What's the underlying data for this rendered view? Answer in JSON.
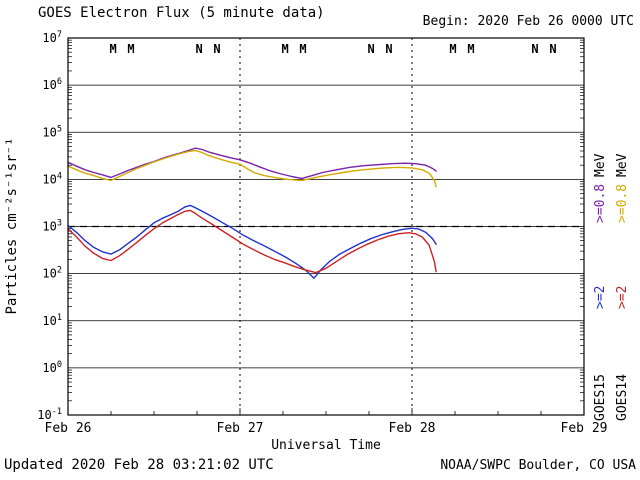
{
  "header": {
    "title": "GOES Electron Flux (5 minute data)",
    "begin_label": "Begin: 2020 Feb 26 0000 UTC"
  },
  "footer": {
    "updated": "Updated 2020 Feb 28 03:21:02 UTC",
    "credit": "NOAA/SWPC Boulder, CO USA"
  },
  "chart_data": {
    "type": "line",
    "title": "GOES Electron Flux (5 minute data)",
    "xlabel": "Universal Time",
    "ylabel": "Particles cm⁻²s⁻¹sr⁻¹",
    "x_ticks": [
      "Feb 26",
      "Feb 27",
      "Feb 28",
      "Feb 29"
    ],
    "x_range_days": [
      0,
      3
    ],
    "y_scale": "log10",
    "y_tick_exponents": [
      7,
      6,
      5,
      4,
      3,
      2,
      1,
      0,
      -1
    ],
    "grid": true,
    "threshold_line": 1000,
    "vertical_day_lines_days": [
      1,
      2
    ],
    "series": [
      {
        "name": "GOES15 >=0.8 MeV",
        "color": "#7b22a8",
        "points": [
          [
            0.0,
            23000
          ],
          [
            0.05,
            19000
          ],
          [
            0.1,
            16000
          ],
          [
            0.15,
            14000
          ],
          [
            0.2,
            12500
          ],
          [
            0.25,
            11000
          ],
          [
            0.3,
            13000
          ],
          [
            0.35,
            15500
          ],
          [
            0.4,
            18000
          ],
          [
            0.45,
            21000
          ],
          [
            0.5,
            24000
          ],
          [
            0.55,
            28000
          ],
          [
            0.6,
            32000
          ],
          [
            0.65,
            36000
          ],
          [
            0.7,
            41000
          ],
          [
            0.74,
            46000
          ],
          [
            0.78,
            43000
          ],
          [
            0.82,
            38000
          ],
          [
            0.88,
            33000
          ],
          [
            0.94,
            29000
          ],
          [
            1.0,
            26000
          ],
          [
            1.06,
            22000
          ],
          [
            1.12,
            18000
          ],
          [
            1.18,
            15000
          ],
          [
            1.24,
            13000
          ],
          [
            1.3,
            11500
          ],
          [
            1.36,
            10500
          ],
          [
            1.42,
            12000
          ],
          [
            1.48,
            14000
          ],
          [
            1.56,
            16000
          ],
          [
            1.64,
            18000
          ],
          [
            1.72,
            19500
          ],
          [
            1.8,
            20500
          ],
          [
            1.88,
            21500
          ],
          [
            1.96,
            22000
          ],
          [
            2.02,
            21500
          ],
          [
            2.08,
            20000
          ],
          [
            2.12,
            17000
          ],
          [
            2.14,
            15000
          ]
        ]
      },
      {
        "name": "GOES14 >=0.8 MeV",
        "color": "#d4aa00",
        "points": [
          [
            0.0,
            19000
          ],
          [
            0.05,
            16000
          ],
          [
            0.1,
            13500
          ],
          [
            0.15,
            12000
          ],
          [
            0.2,
            10500
          ],
          [
            0.25,
            9500
          ],
          [
            0.3,
            11500
          ],
          [
            0.35,
            14000
          ],
          [
            0.4,
            17000
          ],
          [
            0.45,
            20000
          ],
          [
            0.5,
            23500
          ],
          [
            0.55,
            27000
          ],
          [
            0.6,
            31000
          ],
          [
            0.65,
            35000
          ],
          [
            0.7,
            39000
          ],
          [
            0.74,
            41000
          ],
          [
            0.78,
            37000
          ],
          [
            0.82,
            32000
          ],
          [
            0.88,
            27000
          ],
          [
            0.94,
            23500
          ],
          [
            1.0,
            21000
          ],
          [
            1.04,
            17000
          ],
          [
            1.08,
            14000
          ],
          [
            1.14,
            12000
          ],
          [
            1.2,
            11000
          ],
          [
            1.28,
            10000
          ],
          [
            1.36,
            9500
          ],
          [
            1.44,
            11000
          ],
          [
            1.52,
            12500
          ],
          [
            1.6,
            14000
          ],
          [
            1.68,
            15500
          ],
          [
            1.76,
            16500
          ],
          [
            1.84,
            17500
          ],
          [
            1.92,
            18000
          ],
          [
            2.0,
            17500
          ],
          [
            2.06,
            16000
          ],
          [
            2.1,
            13500
          ],
          [
            2.13,
            9500
          ],
          [
            2.14,
            7000
          ]
        ]
      },
      {
        "name": "GOES15 >=2 MeV",
        "color": "#2233cc",
        "points": [
          [
            0.0,
            1050
          ],
          [
            0.05,
            750
          ],
          [
            0.1,
            500
          ],
          [
            0.15,
            360
          ],
          [
            0.2,
            290
          ],
          [
            0.25,
            260
          ],
          [
            0.3,
            320
          ],
          [
            0.35,
            440
          ],
          [
            0.4,
            600
          ],
          [
            0.45,
            850
          ],
          [
            0.5,
            1200
          ],
          [
            0.55,
            1500
          ],
          [
            0.6,
            1800
          ],
          [
            0.64,
            2100
          ],
          [
            0.68,
            2600
          ],
          [
            0.71,
            2800
          ],
          [
            0.74,
            2500
          ],
          [
            0.78,
            2100
          ],
          [
            0.84,
            1600
          ],
          [
            0.9,
            1200
          ],
          [
            0.96,
            900
          ],
          [
            1.02,
            650
          ],
          [
            1.08,
            500
          ],
          [
            1.14,
            390
          ],
          [
            1.2,
            300
          ],
          [
            1.26,
            230
          ],
          [
            1.32,
            170
          ],
          [
            1.38,
            120
          ],
          [
            1.43,
            80
          ],
          [
            1.47,
            120
          ],
          [
            1.52,
            180
          ],
          [
            1.58,
            260
          ],
          [
            1.64,
            340
          ],
          [
            1.7,
            440
          ],
          [
            1.76,
            550
          ],
          [
            1.82,
            660
          ],
          [
            1.88,
            760
          ],
          [
            1.94,
            860
          ],
          [
            2.0,
            920
          ],
          [
            2.04,
            880
          ],
          [
            2.08,
            750
          ],
          [
            2.12,
            550
          ],
          [
            2.14,
            420
          ]
        ]
      },
      {
        "name": "GOES14 >=2 MeV",
        "color": "#cc2222",
        "points": [
          [
            0.0,
            900
          ],
          [
            0.05,
            600
          ],
          [
            0.1,
            380
          ],
          [
            0.15,
            270
          ],
          [
            0.2,
            210
          ],
          [
            0.25,
            190
          ],
          [
            0.3,
            240
          ],
          [
            0.35,
            330
          ],
          [
            0.4,
            460
          ],
          [
            0.45,
            650
          ],
          [
            0.5,
            900
          ],
          [
            0.55,
            1200
          ],
          [
            0.6,
            1500
          ],
          [
            0.64,
            1800
          ],
          [
            0.68,
            2100
          ],
          [
            0.71,
            2200
          ],
          [
            0.74,
            1900
          ],
          [
            0.78,
            1500
          ],
          [
            0.84,
            1100
          ],
          [
            0.9,
            800
          ],
          [
            0.96,
            580
          ],
          [
            1.02,
            420
          ],
          [
            1.08,
            320
          ],
          [
            1.14,
            250
          ],
          [
            1.2,
            200
          ],
          [
            1.26,
            170
          ],
          [
            1.32,
            140
          ],
          [
            1.38,
            120
          ],
          [
            1.44,
            105
          ],
          [
            1.5,
            130
          ],
          [
            1.56,
            180
          ],
          [
            1.62,
            250
          ],
          [
            1.68,
            330
          ],
          [
            1.74,
            420
          ],
          [
            1.8,
            520
          ],
          [
            1.86,
            620
          ],
          [
            1.92,
            700
          ],
          [
            1.98,
            740
          ],
          [
            2.02,
            700
          ],
          [
            2.06,
            600
          ],
          [
            2.1,
            400
          ],
          [
            2.13,
            180
          ],
          [
            2.14,
            110
          ]
        ]
      }
    ],
    "satellite_markers": [
      {
        "label": "M",
        "color": "#bb2222",
        "t": 0.262
      },
      {
        "label": "M",
        "color": "#2233bb",
        "t": 0.366
      },
      {
        "label": "N",
        "color": "#bb2222",
        "t": 0.762
      },
      {
        "label": "N",
        "color": "#2233bb",
        "t": 0.866
      },
      {
        "label": "M",
        "color": "#bb2222",
        "t": 1.262
      },
      {
        "label": "M",
        "color": "#2233bb",
        "t": 1.366
      },
      {
        "label": "N",
        "color": "#bb2222",
        "t": 1.762
      },
      {
        "label": "N",
        "color": "#2233bb",
        "t": 1.866
      },
      {
        "label": "M",
        "color": "#bb2222",
        "t": 2.238
      },
      {
        "label": "M",
        "color": "#2233bb",
        "t": 2.343
      },
      {
        "label": "N",
        "color": "#bb2222",
        "t": 2.715
      },
      {
        "label": "N",
        "color": "#2233bb",
        "t": 2.82
      }
    ],
    "right_legend": {
      "columns": [
        {
          "satellite": "GOES15",
          "segments": [
            {
              "text": "GOES15",
              "color": "#000000"
            },
            {
              "text": ">=2",
              "color": "#2233cc"
            },
            {
              "text": ">=0.8",
              "color": "#7b22a8"
            },
            {
              "text": "MeV",
              "color": "#000000"
            }
          ]
        },
        {
          "satellite": "GOES14",
          "segments": [
            {
              "text": "GOES14",
              "color": "#000000"
            },
            {
              "text": ">=2",
              "color": "#cc2222"
            },
            {
              "text": ">=0.8",
              "color": "#d4aa00"
            },
            {
              "text": "MeV",
              "color": "#000000"
            }
          ]
        }
      ]
    }
  }
}
